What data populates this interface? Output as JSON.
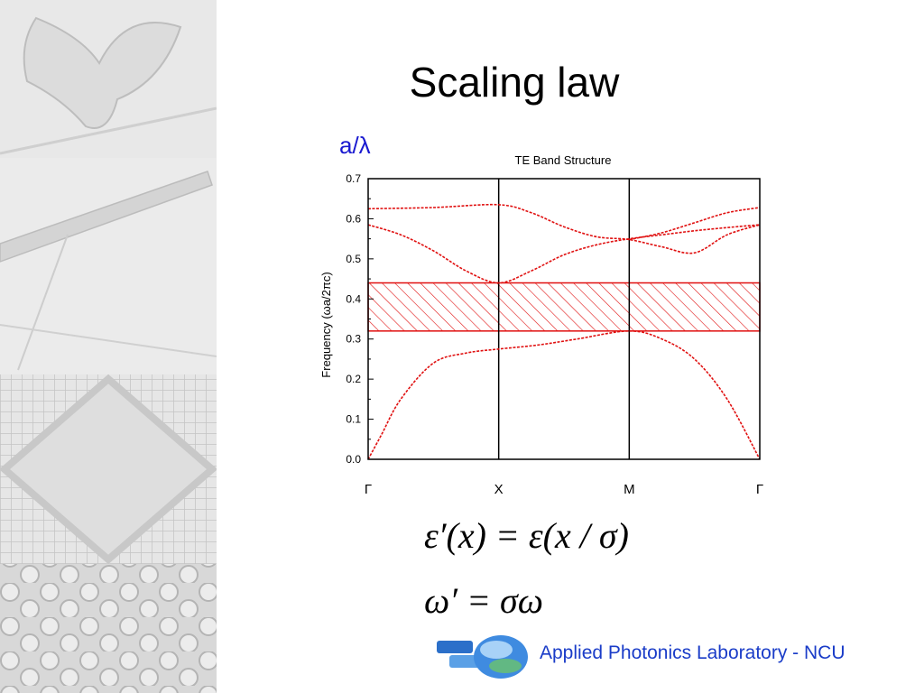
{
  "slide": {
    "title": "Scaling law",
    "yaxis_caption": "a/λ",
    "equation_1": "ε′(x) = ε(x / σ)",
    "equation_2": "ω′ = σω",
    "footer": "Applied Photonics Laboratory - NCU"
  },
  "colors": {
    "curve": "#e01010",
    "axis": "#000000",
    "caption": "#1a1ad0",
    "footer_text": "#1a3cc8"
  },
  "icons": [
    "butterfly-texture",
    "grass-texture",
    "diamond-grid-texture",
    "hexagon-texture",
    "lab-logo-icon"
  ],
  "chart_data": {
    "type": "line",
    "title": "TE Band Structure",
    "ylabel": "Frequency (ωa/2πc)",
    "xlabel": "",
    "x_ticks": [
      "Γ",
      "X",
      "M",
      "Γ"
    ],
    "y_ticks": [
      "0.0",
      "0.1",
      "0.2",
      "0.3",
      "0.4",
      "0.5",
      "0.6",
      "0.7"
    ],
    "ylim": [
      0,
      0.7
    ],
    "band_gap": [
      0.32,
      0.44
    ],
    "series": [
      {
        "values": [
          [
            0,
            0
          ],
          [
            0.1,
            0.06
          ],
          [
            0.25,
            0.15
          ],
          [
            0.5,
            0.24
          ],
          [
            0.75,
            0.265
          ],
          [
            1,
            0.275
          ],
          [
            1.3,
            0.285
          ],
          [
            1.6,
            0.3
          ],
          [
            2,
            0.32
          ],
          [
            2.25,
            0.3
          ],
          [
            2.5,
            0.25
          ],
          [
            2.75,
            0.15
          ],
          [
            3,
            0
          ]
        ]
      },
      {
        "values": [
          [
            0,
            0.585
          ],
          [
            0.25,
            0.56
          ],
          [
            0.5,
            0.52
          ],
          [
            0.75,
            0.47
          ],
          [
            1,
            0.44
          ],
          [
            1.25,
            0.47
          ],
          [
            1.5,
            0.51
          ],
          [
            1.75,
            0.535
          ],
          [
            2,
            0.55
          ],
          [
            2.25,
            0.56
          ],
          [
            2.5,
            0.57
          ],
          [
            2.75,
            0.578
          ],
          [
            3,
            0.585
          ]
        ]
      },
      {
        "values": [
          [
            0,
            0.625
          ],
          [
            0.5,
            0.628
          ],
          [
            1,
            0.635
          ],
          [
            1.25,
            0.615
          ],
          [
            1.5,
            0.58
          ],
          [
            1.75,
            0.555
          ],
          [
            2,
            0.548
          ],
          [
            2.25,
            0.53
          ],
          [
            2.5,
            0.515
          ],
          [
            2.75,
            0.56
          ],
          [
            3,
            0.585
          ]
        ]
      },
      {
        "values": [
          [
            2,
            0.548
          ],
          [
            2.25,
            0.565
          ],
          [
            2.5,
            0.59
          ],
          [
            2.75,
            0.615
          ],
          [
            3,
            0.628
          ]
        ]
      }
    ]
  }
}
